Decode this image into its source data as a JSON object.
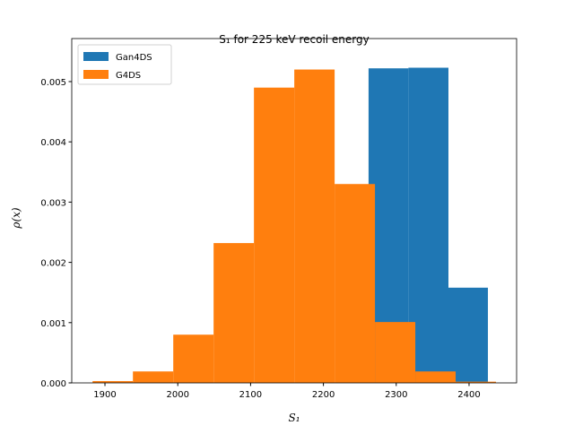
{
  "chart_data": {
    "type": "histogram",
    "title": "S₁ for 225 keV recoil energy",
    "xlabel": "S₁",
    "ylabel": "ρ(x)",
    "xlim": [
      1854.4,
      2465.3
    ],
    "ylim": [
      0,
      0.005714
    ],
    "xticks": [
      1900,
      2000,
      2100,
      2200,
      2300,
      2400
    ],
    "yticks": [
      {
        "value": 0,
        "label": "0.000"
      },
      {
        "value": 0.001,
        "label": "0.001"
      },
      {
        "value": 0.002,
        "label": "0.002"
      },
      {
        "value": 0.003,
        "label": "0.003"
      },
      {
        "value": 0.004,
        "label": "0.004"
      },
      {
        "value": 0.005,
        "label": "0.005"
      }
    ],
    "legend": "upper left",
    "series": [
      {
        "name": "Gan4DS",
        "color": "#1f77b4",
        "bins": [
          2262,
          2316.7,
          2371.7,
          2425.9
        ],
        "values": [
          0.00522,
          0.00523,
          0.00158
        ]
      },
      {
        "name": "G4DS",
        "color": "#ff7f0e",
        "bins": [
          1883,
          1938.4,
          1993.8,
          2049.2,
          2104.6,
          2160,
          2215.4,
          2270.8,
          2326.2,
          2381.6,
          2437
        ],
        "values": [
          3e-05,
          0.00019,
          0.0008,
          0.00232,
          0.0049,
          0.0052,
          0.0033,
          0.00101,
          0.00019,
          2e-05
        ]
      }
    ]
  }
}
